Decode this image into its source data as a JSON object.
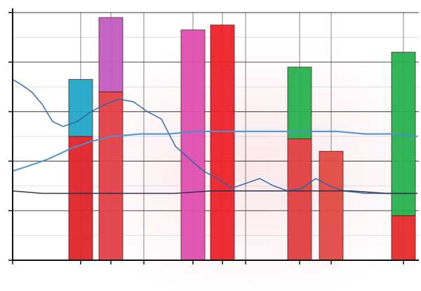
{
  "chart_data": {
    "type": "bar",
    "title": "",
    "xlabel": "",
    "ylabel": "",
    "ylim": [
      0,
      100
    ],
    "grid": true,
    "legend": "none",
    "bars": [
      {
        "x": 115,
        "segments": [
          {
            "value": 50,
            "color": "#e0242a"
          },
          {
            "value": 23,
            "color": "#23a7c8"
          }
        ]
      },
      {
        "x": 158,
        "segments": [
          {
            "value": 68,
            "color": "#e24045"
          },
          {
            "value": 30,
            "color": "#c55cc0"
          }
        ]
      },
      {
        "x": 275,
        "segments": [
          {
            "value": 93,
            "color": "#e050b0"
          }
        ]
      },
      {
        "x": 317,
        "segments": [
          {
            "value": 95,
            "color": "#ee2229"
          }
        ]
      },
      {
        "x": 427,
        "segments": [
          {
            "value": 49,
            "color": "#e04040"
          },
          {
            "value": 29,
            "color": "#27b24f"
          }
        ]
      },
      {
        "x": 472,
        "segments": [
          {
            "value": 44,
            "color": "#e34a44"
          }
        ]
      },
      {
        "x": 575,
        "segments": [
          {
            "value": 18,
            "color": "#e72b2b"
          },
          {
            "value": 66,
            "color": "#27b24f"
          }
        ]
      }
    ],
    "lines": [
      {
        "color": "#2f64a8",
        "x": [
          18,
          30,
          45,
          60,
          75,
          90,
          110,
          130,
          150,
          170,
          190,
          210,
          230,
          250,
          270,
          290,
          310,
          330,
          350,
          370,
          390,
          410,
          430,
          450,
          470,
          490,
          520,
          550,
          580
        ],
        "y": [
          73,
          71,
          68,
          63,
          56,
          54,
          56,
          60,
          63,
          65,
          64,
          60,
          57,
          46,
          41,
          36,
          33,
          29,
          31,
          33,
          30,
          28,
          29,
          33,
          30,
          28,
          27,
          27,
          27
        ]
      },
      {
        "color": "#4a8fd0",
        "x": [
          18,
          40,
          70,
          100,
          130,
          160,
          200,
          240,
          280,
          320,
          360,
          400,
          440,
          480,
          520,
          560,
          595
        ],
        "y": [
          36,
          38,
          41,
          45,
          48,
          50,
          51,
          51,
          52,
          52,
          52,
          52,
          52,
          52,
          51,
          51,
          50
        ]
      },
      {
        "color": "#2b2b4a",
        "x": [
          18,
          60,
          100,
          150,
          200,
          250,
          300,
          350,
          400,
          450,
          500,
          550,
          595
        ],
        "y": [
          28,
          27,
          27,
          27,
          27,
          27,
          28,
          28,
          28,
          28,
          28,
          27,
          27
        ]
      }
    ],
    "y_ticks": [
      0,
      20,
      40,
      60,
      80,
      100
    ],
    "x_ticks": [
      18,
      115,
      158,
      205,
      275,
      317,
      350,
      427,
      472,
      575
    ]
  }
}
